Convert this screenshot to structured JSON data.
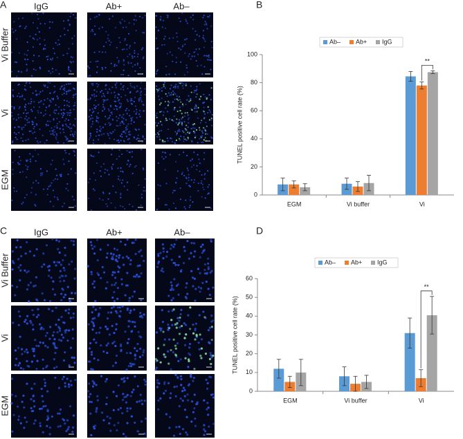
{
  "panels": [
    {
      "letter": "A",
      "columns": [
        "IgG",
        "Ab+",
        "Ab–"
      ],
      "rows": [
        "Vi Buffer",
        "Vi",
        "EGM"
      ]
    },
    {
      "letter": "C",
      "columns": [
        "IgG",
        "Ab+",
        "Ab–"
      ],
      "rows": [
        "Vi Buffer",
        "Vi",
        "EGM"
      ]
    }
  ],
  "chart_data": [
    {
      "type": "bar",
      "letter": "B",
      "y_label": "TUNEL positive cell rate (%)",
      "categories": [
        "EGM",
        "Vi buffer",
        "Vi"
      ],
      "series": [
        {
          "name": "Ab–",
          "color": "#5b9bd5",
          "values": [
            7.5,
            8,
            84.5
          ],
          "errors": [
            4.5,
            4,
            3.5
          ]
        },
        {
          "name": "Ab+",
          "color": "#ed7d31",
          "values": [
            7.5,
            6,
            78
          ],
          "errors": [
            2.5,
            3.5,
            2.5
          ]
        },
        {
          "name": "IgG",
          "color": "#a5a5a5",
          "values": [
            5.5,
            8.5,
            87.5
          ],
          "errors": [
            2.5,
            5.5,
            1
          ]
        }
      ],
      "ylim": [
        0,
        100
      ],
      "yticks": [
        0,
        20,
        40,
        60,
        80,
        100
      ],
      "annotation": "**"
    },
    {
      "type": "bar",
      "letter": "D",
      "y_label": "TUNEL positive cell rate (%)",
      "categories": [
        "EGM",
        "Vi buffer",
        "Vi"
      ],
      "series": [
        {
          "name": "Ab–",
          "color": "#5b9bd5",
          "values": [
            12,
            8,
            31
          ],
          "errors": [
            5,
            5,
            8
          ]
        },
        {
          "name": "Ab+",
          "color": "#ed7d31",
          "values": [
            5,
            4,
            7
          ],
          "errors": [
            3,
            4,
            4.5
          ]
        },
        {
          "name": "IgG",
          "color": "#a5a5a5",
          "values": [
            10,
            5,
            40.5
          ],
          "errors": [
            7,
            3.5,
            10
          ]
        }
      ],
      "ylim": [
        0,
        60
      ],
      "yticks": [
        0,
        10,
        20,
        30,
        40,
        50,
        60
      ],
      "annotation": "**"
    }
  ]
}
